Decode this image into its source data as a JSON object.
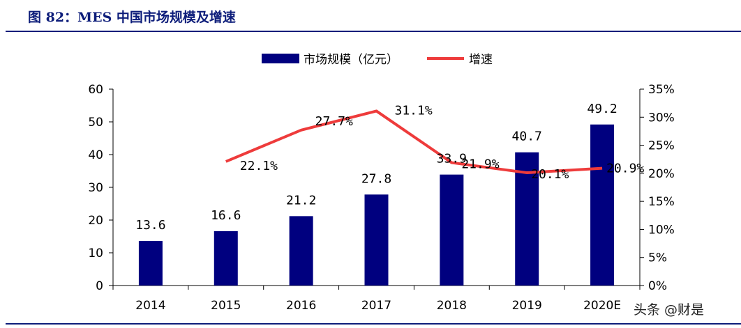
{
  "header": {
    "title": "图 82：MES 中国市场规模及增速"
  },
  "watermark": "头条 @财是",
  "colors": {
    "bar": "#00007f",
    "line": "#ee3b3b",
    "title": "#0d1d7a",
    "rule": "#0d1d7a"
  },
  "chart_data": {
    "type": "bar+line",
    "categories": [
      "2014",
      "2015",
      "2016",
      "2017",
      "2018",
      "2019",
      "2020E"
    ],
    "series": [
      {
        "name": "市场规模（亿元）",
        "type": "bar",
        "axis": "left",
        "values": [
          13.6,
          16.6,
          21.2,
          27.8,
          33.9,
          40.7,
          49.2
        ],
        "labels": [
          "13.6",
          "16.6",
          "21.2",
          "27.8",
          "33.9",
          "40.7",
          "49.2"
        ]
      },
      {
        "name": "增速",
        "type": "line",
        "axis": "right",
        "values": [
          null,
          22.1,
          27.7,
          31.1,
          21.9,
          20.1,
          20.9
        ],
        "labels": [
          null,
          "22.1%",
          "27.7%",
          "31.1%",
          "21.9%",
          "20.1%",
          "20.9%"
        ]
      }
    ],
    "y_left": {
      "ylim": [
        0,
        60
      ],
      "ticks": [
        "0",
        "10",
        "20",
        "30",
        "40",
        "50",
        "60"
      ]
    },
    "y_right": {
      "ylim": [
        0,
        35
      ],
      "ticks": [
        "0%",
        "5%",
        "10%",
        "15%",
        "20%",
        "25%",
        "30%",
        "35%"
      ]
    },
    "legend": "top-center",
    "grid": false
  }
}
